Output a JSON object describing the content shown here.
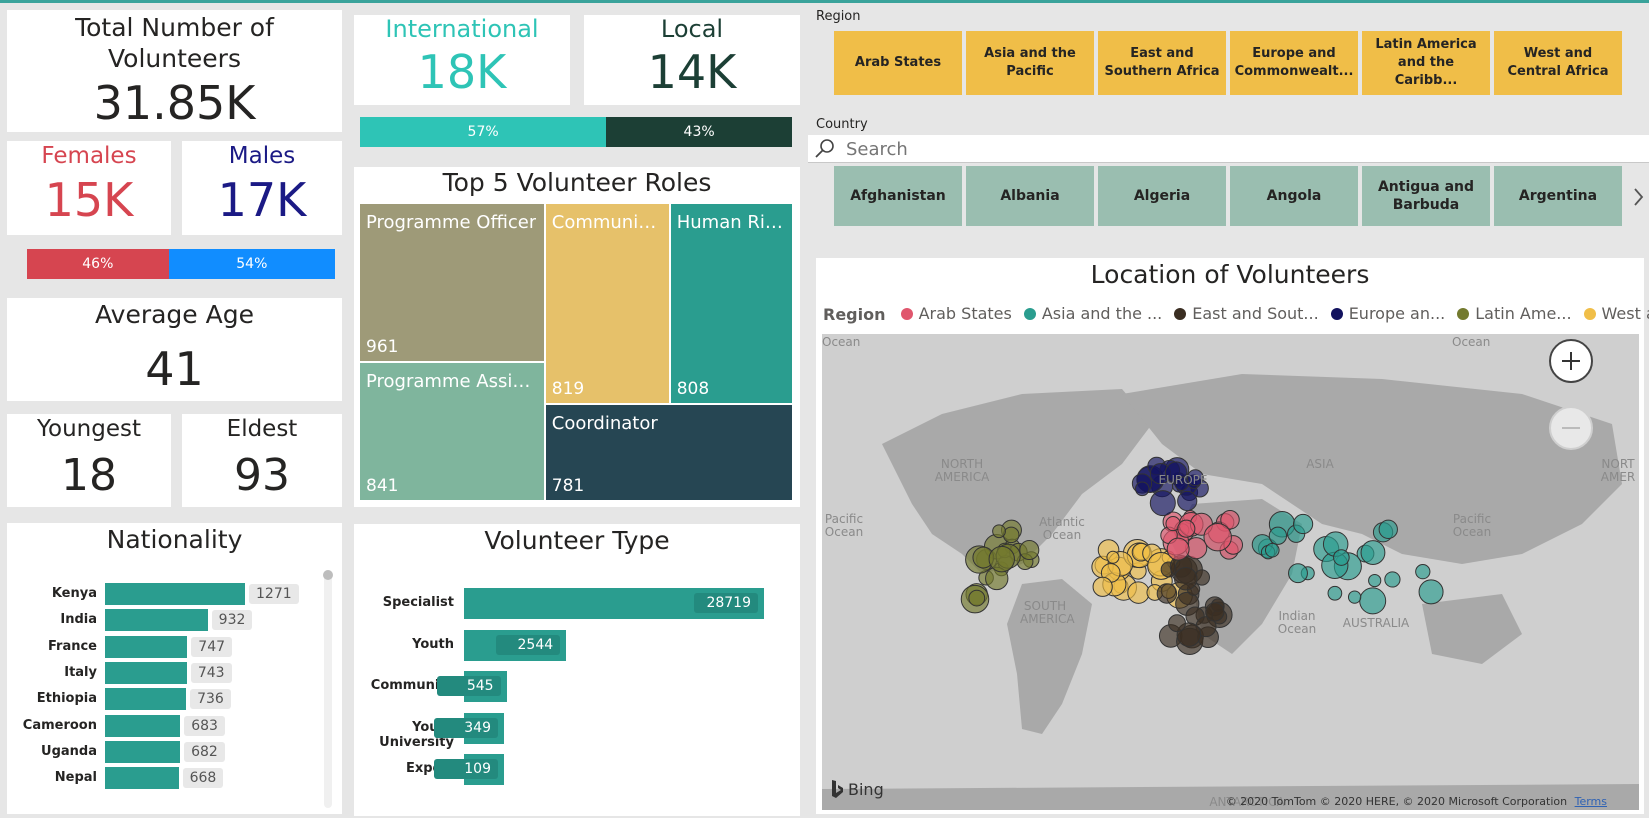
{
  "kpis": {
    "total_title": "Total Number of Volunteers",
    "total_value": "31.85K",
    "female_title": "Females",
    "female_value": "15K",
    "male_title": "Males",
    "male_value": "17K",
    "gender_split": {
      "female_pct": 46,
      "male_pct": 54,
      "female_label": "46%",
      "male_label": "54%"
    },
    "avg_age_title": "Average Age",
    "avg_age_value": "41",
    "youngest_title": "Youngest",
    "youngest_value": "18",
    "eldest_title": "Eldest",
    "eldest_value": "93",
    "international_title": "International",
    "international_value": "18K",
    "local_title": "Local",
    "local_value": "14K",
    "type_split": {
      "intl_pct": 57,
      "local_pct": 43,
      "intl_label": "57%",
      "local_label": "43%"
    }
  },
  "colors": {
    "female": "#d64550",
    "male": "#118dff",
    "male_text": "#1b1a85",
    "international": "#2ec4b6",
    "local": "#1c3f35",
    "teal_bar": "#2a9d8f",
    "region_tile": "#f0be48",
    "country_tile": "#9abeb0"
  },
  "roles": {
    "title": "Top 5 Volunteer Roles",
    "items": [
      {
        "label": "Programme Officer",
        "value": "961",
        "color": "#9e9a78"
      },
      {
        "label": "Programme Assist...",
        "value": "841",
        "color": "#7fb59d"
      },
      {
        "label": "Community...",
        "value": "819",
        "color": "#e6c16a"
      },
      {
        "label": "Human Rig...",
        "value": "808",
        "color": "#2a9d8f"
      },
      {
        "label": "Coordinator",
        "value": "781",
        "color": "#264653"
      }
    ]
  },
  "nationality": {
    "title": "Nationality",
    "items": [
      {
        "name": "Kenya",
        "value": 1271
      },
      {
        "name": "India",
        "value": 932
      },
      {
        "name": "France",
        "value": 747
      },
      {
        "name": "Italy",
        "value": 743
      },
      {
        "name": "Ethiopia",
        "value": 736
      },
      {
        "name": "Cameroon",
        "value": 683
      },
      {
        "name": "Uganda",
        "value": 682
      },
      {
        "name": "Nepal",
        "value": 668
      }
    ]
  },
  "volunteer_type": {
    "title": "Volunteer Type",
    "items": [
      {
        "name": "Specialist",
        "value": 28719
      },
      {
        "name": "Youth",
        "value": 2544
      },
      {
        "name": "Community",
        "value": 545
      },
      {
        "name": "Youth University",
        "value": 349
      },
      {
        "name": "Expert",
        "value": 109
      }
    ]
  },
  "region_slicer": {
    "label": "Region",
    "options": [
      "Arab States",
      "Asia and the Pacific",
      "East and Southern Africa",
      "Europe and Commonwealt...",
      "Latin America and the Caribb...",
      "West and Central Africa"
    ]
  },
  "country_slicer": {
    "label": "Country",
    "search_placeholder": "Search",
    "options": [
      "Afghanistan",
      "Albania",
      "Algeria",
      "Angola",
      "Antigua and Barbuda",
      "Argentina"
    ]
  },
  "map": {
    "title": "Location of Volunteers",
    "legend_title": "Region",
    "legend": [
      {
        "name": "Arab States",
        "color": "#e0566d"
      },
      {
        "name": "Asia and the ...",
        "color": "#2a9d8f"
      },
      {
        "name": "East and Sout...",
        "color": "#3a2e22"
      },
      {
        "name": "Europe an...",
        "color": "#12125f"
      },
      {
        "name": "Latin Ame...",
        "color": "#737a2e"
      },
      {
        "name": "West and ...",
        "color": "#f0be48"
      }
    ],
    "labels": {
      "north_america": "NORTH AMERICA",
      "south_america": "SOUTH AMERICA",
      "asia": "ASIA",
      "australia": "AUSTRALIA",
      "europe": "EUROPE",
      "atlantic": "Atlantic Ocean",
      "pacific_left": "Pacific Ocean",
      "pacific_right": "Pacific Ocean",
      "indian": "Indian Ocean",
      "antarctica": "ANTARCTICA",
      "north_america_right": "NORT AMER",
      "ocean_top_left": "Ocean",
      "ocean_top_right": "Ocean"
    },
    "bing_label": "Bing",
    "copyright": "© 2020 TomTom © 2020 HERE, © 2020 Microsoft Corporation",
    "terms": "Terms"
  }
}
